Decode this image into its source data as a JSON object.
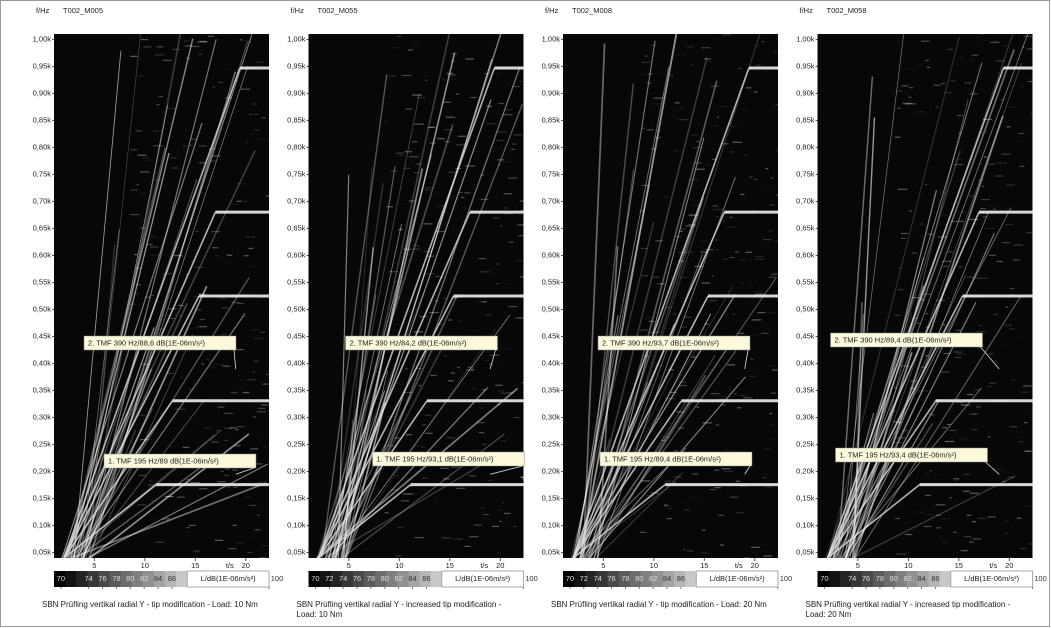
{
  "chart_data": [
    {
      "type": "spectrogram",
      "title": "T002_M005",
      "y_label": "f/Hz",
      "x_label": "t/s",
      "caption": "SBN Prüfling vertikal radial Y - tip modification - Load: 10 Nm",
      "xlim": [
        1,
        22.3
      ],
      "ylim": [
        40,
        1010
      ],
      "xticks": [
        5,
        10,
        15,
        20
      ],
      "yticks": [
        {
          "value": 1000,
          "label": "1,00k"
        },
        {
          "value": 950,
          "label": "0,95k"
        },
        {
          "value": 900,
          "label": "0,90k"
        },
        {
          "value": 850,
          "label": "0,85k"
        },
        {
          "value": 800,
          "label": "0,80k"
        },
        {
          "value": 750,
          "label": "0,75k"
        },
        {
          "value": 700,
          "label": "0,70k"
        },
        {
          "value": 650,
          "label": "0,65k"
        },
        {
          "value": 600,
          "label": "0,60k"
        },
        {
          "value": 550,
          "label": "0,55k"
        },
        {
          "value": 500,
          "label": "0,50k"
        },
        {
          "value": 450,
          "label": "0,45k"
        },
        {
          "value": 400,
          "label": "0,40k"
        },
        {
          "value": 350,
          "label": "0,35k"
        },
        {
          "value": 300,
          "label": "0,30k"
        },
        {
          "value": 250,
          "label": "0,25k"
        },
        {
          "value": 200,
          "label": "0,20k"
        },
        {
          "value": 150,
          "label": "0,15k"
        },
        {
          "value": 100,
          "label": "0,10k"
        },
        {
          "value": 50,
          "label": "0,05k"
        }
      ],
      "colorbar": {
        "label": "L/dB(1E-06m/s²)",
        "lim": [
          69,
          100
        ],
        "ticks": [
          70,
          74,
          76,
          78,
          80,
          82,
          84,
          86,
          100
        ]
      },
      "annotations": [
        {
          "text": "2. TMF 390 Hz/88,6 dB(1E-06m/s²)",
          "x": 19,
          "y": 390
        },
        {
          "text": "1. TMF 195 Hz/89 dB(1E-06m/s²)",
          "x": 19,
          "y": 195
        }
      ]
    },
    {
      "type": "spectrogram",
      "title": "T002_M055",
      "y_label": "f/Hz",
      "x_label": "t/s",
      "caption": "SBN Prüfling vertikal radial Y - increased tip modification - Load: 10 Nm",
      "xlim": [
        1,
        22.3
      ],
      "ylim": [
        40,
        1010
      ],
      "xticks": [
        5,
        10,
        15,
        20
      ],
      "yticks": [
        {
          "value": 1000,
          "label": "1,00k"
        },
        {
          "value": 950,
          "label": "0,95k"
        },
        {
          "value": 900,
          "label": "0,90k"
        },
        {
          "value": 850,
          "label": "0,85k"
        },
        {
          "value": 800,
          "label": "0,80k"
        },
        {
          "value": 750,
          "label": "0,75k"
        },
        {
          "value": 700,
          "label": "0,70k"
        },
        {
          "value": 650,
          "label": "0,65k"
        },
        {
          "value": 600,
          "label": "0,60k"
        },
        {
          "value": 550,
          "label": "0,55k"
        },
        {
          "value": 500,
          "label": "0,50k"
        },
        {
          "value": 450,
          "label": "0,45k"
        },
        {
          "value": 400,
          "label": "0,40k"
        },
        {
          "value": 350,
          "label": "0,35k"
        },
        {
          "value": 300,
          "label": "0,30k"
        },
        {
          "value": 250,
          "label": "0,25k"
        },
        {
          "value": 200,
          "label": "0,20k"
        },
        {
          "value": 150,
          "label": "0,15k"
        },
        {
          "value": 100,
          "label": "0,10k"
        },
        {
          "value": 50,
          "label": "0,05k"
        }
      ],
      "colorbar": {
        "label": "L/dB(1E-06m/s²)",
        "lim": [
          69,
          100
        ],
        "ticks": [
          70,
          72,
          74,
          76,
          78,
          80,
          82,
          84,
          86,
          100
        ]
      },
      "annotations": [
        {
          "text": "2. TMF 390 Hz/84,2 dB(1E-06m/s²)",
          "x": 19,
          "y": 390
        },
        {
          "text": "1. TMF 195 Hz/93,1 dB(1E-06m/s²)",
          "x": 19,
          "y": 195
        }
      ]
    },
    {
      "type": "spectrogram",
      "title": "T002_M008",
      "y_label": "f/Hz",
      "x_label": "t/s",
      "caption": "SBN Prüfling vertikal radial Y - tip modification - Load: 20 Nm",
      "xlim": [
        1,
        22.3
      ],
      "ylim": [
        40,
        1010
      ],
      "xticks": [
        5,
        10,
        15,
        20
      ],
      "yticks": [
        {
          "value": 1000,
          "label": "1,00k"
        },
        {
          "value": 950,
          "label": "0,95k"
        },
        {
          "value": 900,
          "label": "0,90k"
        },
        {
          "value": 850,
          "label": "0,85k"
        },
        {
          "value": 800,
          "label": "0,80k"
        },
        {
          "value": 750,
          "label": "0,75k"
        },
        {
          "value": 700,
          "label": "0,70k"
        },
        {
          "value": 650,
          "label": "0,65k"
        },
        {
          "value": 600,
          "label": "0,60k"
        },
        {
          "value": 550,
          "label": "0,55k"
        },
        {
          "value": 500,
          "label": "0,50k"
        },
        {
          "value": 450,
          "label": "0,45k"
        },
        {
          "value": 400,
          "label": "0,40k"
        },
        {
          "value": 350,
          "label": "0,35k"
        },
        {
          "value": 300,
          "label": "0,30k"
        },
        {
          "value": 250,
          "label": "0,25k"
        },
        {
          "value": 200,
          "label": "0,20k"
        },
        {
          "value": 150,
          "label": "0,15k"
        },
        {
          "value": 100,
          "label": "0,10k"
        },
        {
          "value": 50,
          "label": "0,05k"
        }
      ],
      "colorbar": {
        "label": "L/dB(1E-06m/s²)",
        "lim": [
          69,
          100
        ],
        "ticks": [
          70,
          72,
          74,
          76,
          78,
          80,
          82,
          84,
          86,
          100
        ]
      },
      "annotations": [
        {
          "text": "2. TMF 390 Hz/93,7 dB(1E-06m/s²)",
          "x": 19,
          "y": 390
        },
        {
          "text": "1. TMF 195 Hz/89,4 dB(1E-06m/s²)",
          "x": 19,
          "y": 195
        }
      ]
    },
    {
      "type": "spectrogram",
      "title": "T002_M058",
      "y_label": "f/Hz",
      "x_label": "t/s",
      "caption": "SBN Prüfling vertikal radial Y - increased tip modification - Load: 20 Nm",
      "xlim": [
        1,
        22.3
      ],
      "ylim": [
        40,
        1010
      ],
      "xticks": [
        5,
        10,
        15,
        20
      ],
      "yticks": [
        {
          "value": 1000,
          "label": "1,00k"
        },
        {
          "value": 950,
          "label": "0,95k"
        },
        {
          "value": 900,
          "label": "0,90k"
        },
        {
          "value": 850,
          "label": "0,85k"
        },
        {
          "value": 800,
          "label": "0,80k"
        },
        {
          "value": 750,
          "label": "0,75k"
        },
        {
          "value": 700,
          "label": "0,70k"
        },
        {
          "value": 650,
          "label": "0,65k"
        },
        {
          "value": 600,
          "label": "0,60k"
        },
        {
          "value": 550,
          "label": "0,55k"
        },
        {
          "value": 500,
          "label": "0,50k"
        },
        {
          "value": 450,
          "label": "0,45k"
        },
        {
          "value": 400,
          "label": "0,40k"
        },
        {
          "value": 350,
          "label": "0,35k"
        },
        {
          "value": 300,
          "label": "0,30k"
        },
        {
          "value": 250,
          "label": "0,25k"
        },
        {
          "value": 200,
          "label": "0,20k"
        },
        {
          "value": 150,
          "label": "0,15k"
        },
        {
          "value": 100,
          "label": "0,10k"
        },
        {
          "value": 50,
          "label": "0,05k"
        }
      ],
      "colorbar": {
        "label": "L/dB(1E-06m/s²)",
        "lim": [
          69,
          100
        ],
        "ticks": [
          70,
          74,
          76,
          78,
          80,
          82,
          84,
          86,
          100
        ]
      },
      "annotations": [
        {
          "text": "2. TMF 390 Hz/89,4 dB(1E-06m/s²)",
          "x": 19,
          "y": 390
        },
        {
          "text": "1. TMF 195 Hz/93,4 dB(1E-06m/s²)",
          "x": 19,
          "y": 195
        }
      ]
    }
  ]
}
